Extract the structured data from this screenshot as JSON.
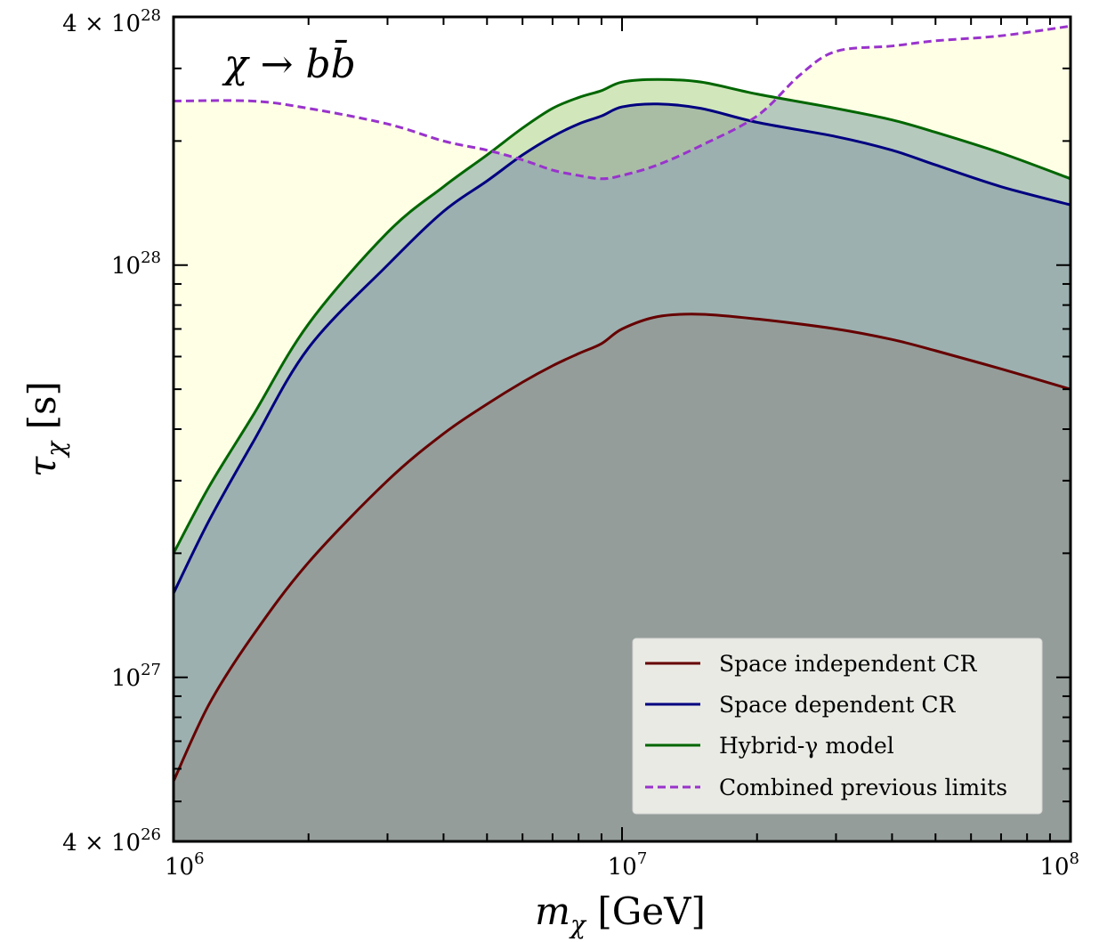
{
  "chart_data": {
    "type": "line",
    "scale": {
      "x": "log",
      "y": "log"
    },
    "xlim": [
      1000000,
      100000000
    ],
    "ylim": [
      4e+26,
      4e+28
    ],
    "xlabel": "m_χ [GeV]",
    "xlabel_parts": {
      "var": "m",
      "sub": "χ",
      "unit": " [GeV]"
    },
    "ylabel": "τ_χ [s]",
    "ylabel_parts": {
      "var": "τ",
      "sub": "χ",
      "unit": " [s]"
    },
    "annotation": "χ → bb̄",
    "annotation_parts": {
      "lhs": "χ → b",
      "rhs": "b̄"
    },
    "x_ticks": [
      {
        "value": 1000000,
        "base": "10",
        "exp": "6"
      },
      {
        "value": 10000000,
        "base": "10",
        "exp": "7"
      },
      {
        "value": 100000000,
        "base": "10",
        "exp": "8"
      }
    ],
    "y_ticks": [
      {
        "value": 4e+28,
        "base": "4 × 10",
        "exp": "28"
      },
      {
        "value": 1e+28,
        "base": "10",
        "exp": "28"
      },
      {
        "value": 1e+27,
        "base": "10",
        "exp": "27"
      },
      {
        "value": 4e+26,
        "base": "4 × 10",
        "exp": "26"
      }
    ],
    "legend_position": "lower-right",
    "x": [
      1000000,
      1200000,
      1500000,
      2000000,
      3000000,
      4000000,
      5000000,
      6000000,
      7000000,
      8000000,
      9000000,
      10000000,
      12000000,
      15000000,
      20000000,
      30000000,
      40000000,
      50000000,
      70000000,
      100000000
    ],
    "prior_region": {
      "name": "Combined previous limits",
      "color": "#9933cc",
      "fill": "#ffffe6",
      "x": [
        1000000,
        1500000,
        2000000,
        3000000,
        4000000,
        5000000,
        6000000,
        7000000,
        8000000,
        9000000,
        10000000,
        12000000,
        15000000,
        20000000,
        25000000,
        30000000,
        40000000,
        50000000,
        70000000,
        100000000
      ],
      "values": [
        2.5e+28,
        2.5e+28,
        2.4e+28,
        2.2e+28,
        2e+28,
        1.9e+28,
        1.8e+28,
        1.7e+28,
        1.65e+28,
        1.62e+28,
        1.65e+28,
        1.75e+28,
        1.95e+28,
        2.3e+28,
        2.9e+28,
        3.3e+28,
        3.4e+28,
        3.5e+28,
        3.6e+28,
        3.8e+28
      ]
    },
    "series": [
      {
        "name": "Space independent CR",
        "color": "#660000",
        "fill": "#9c9e84",
        "values": [
          5.6e+26,
          8.6e+26,
          1.26e+27,
          1.9e+27,
          3e+27,
          3.9e+27,
          4.6e+27,
          5.2e+27,
          5.7e+27,
          6.1e+27,
          6.45e+27,
          7e+27,
          7.5e+27,
          7.6e+27,
          7.4e+27,
          7e+27,
          6.6e+27,
          6.2e+27,
          5.6e+27,
          5e+27
        ]
      },
      {
        "name": "Space dependent CR",
        "color": "#000080",
        "fill": "#a9bda5",
        "values": [
          1.6e+27,
          2.4e+27,
          3.7e+27,
          6.3e+27,
          1e+28,
          1.35e+28,
          1.6e+28,
          1.85e+28,
          2.05e+28,
          2.2e+28,
          2.3e+28,
          2.42e+28,
          2.46e+28,
          2.4e+28,
          2.22e+28,
          2.05e+28,
          1.9e+28,
          1.75e+28,
          1.55e+28,
          1.4e+28
        ]
      },
      {
        "name": "Hybrid-γ model",
        "color": "#006600",
        "fill": "#d2e6bc",
        "values": [
          2e+27,
          2.9e+27,
          4.3e+27,
          7.2e+27,
          1.2e+28,
          1.55e+28,
          1.85e+28,
          2.15e+28,
          2.4e+28,
          2.55e+28,
          2.65e+28,
          2.78e+28,
          2.82e+28,
          2.78e+28,
          2.6e+28,
          2.4e+28,
          2.25e+28,
          2.1e+28,
          1.87e+28,
          1.62e+28
        ]
      }
    ]
  }
}
